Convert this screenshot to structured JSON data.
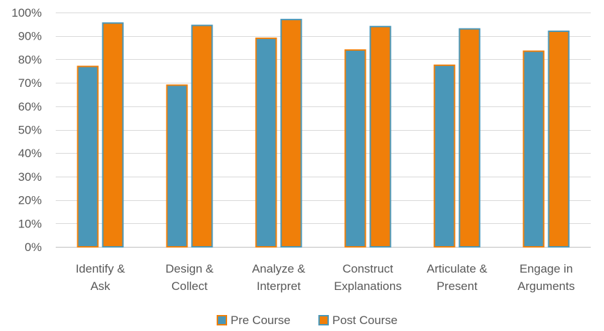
{
  "chart_data": {
    "type": "bar",
    "title": "",
    "xlabel": "",
    "ylabel": "",
    "ylim": [
      0,
      1
    ],
    "ytick_labels": [
      "0%",
      "10%",
      "20%",
      "30%",
      "40%",
      "50%",
      "60%",
      "70%",
      "80%",
      "90%",
      "100%"
    ],
    "grid": true,
    "legend_position": "bottom",
    "categories": [
      [
        "Identify &",
        "Ask"
      ],
      [
        "Design &",
        "Collect"
      ],
      [
        "Analyze &",
        "Interpret"
      ],
      [
        "Construct",
        "Explanations"
      ],
      [
        "Articulate &",
        "Present"
      ],
      [
        "Engage in",
        "Arguments"
      ]
    ],
    "series": [
      {
        "name": "Pre Course",
        "values": [
          0.77,
          0.69,
          0.89,
          0.84,
          0.775,
          0.835
        ]
      },
      {
        "name": "Post Course",
        "values": [
          0.955,
          0.945,
          0.97,
          0.94,
          0.93,
          0.92
        ]
      }
    ],
    "bar_fills": [
      "#4a97b8",
      "#f07f09"
    ],
    "bar_outlines": [
      "#f07f09",
      "#4a97b8"
    ]
  }
}
